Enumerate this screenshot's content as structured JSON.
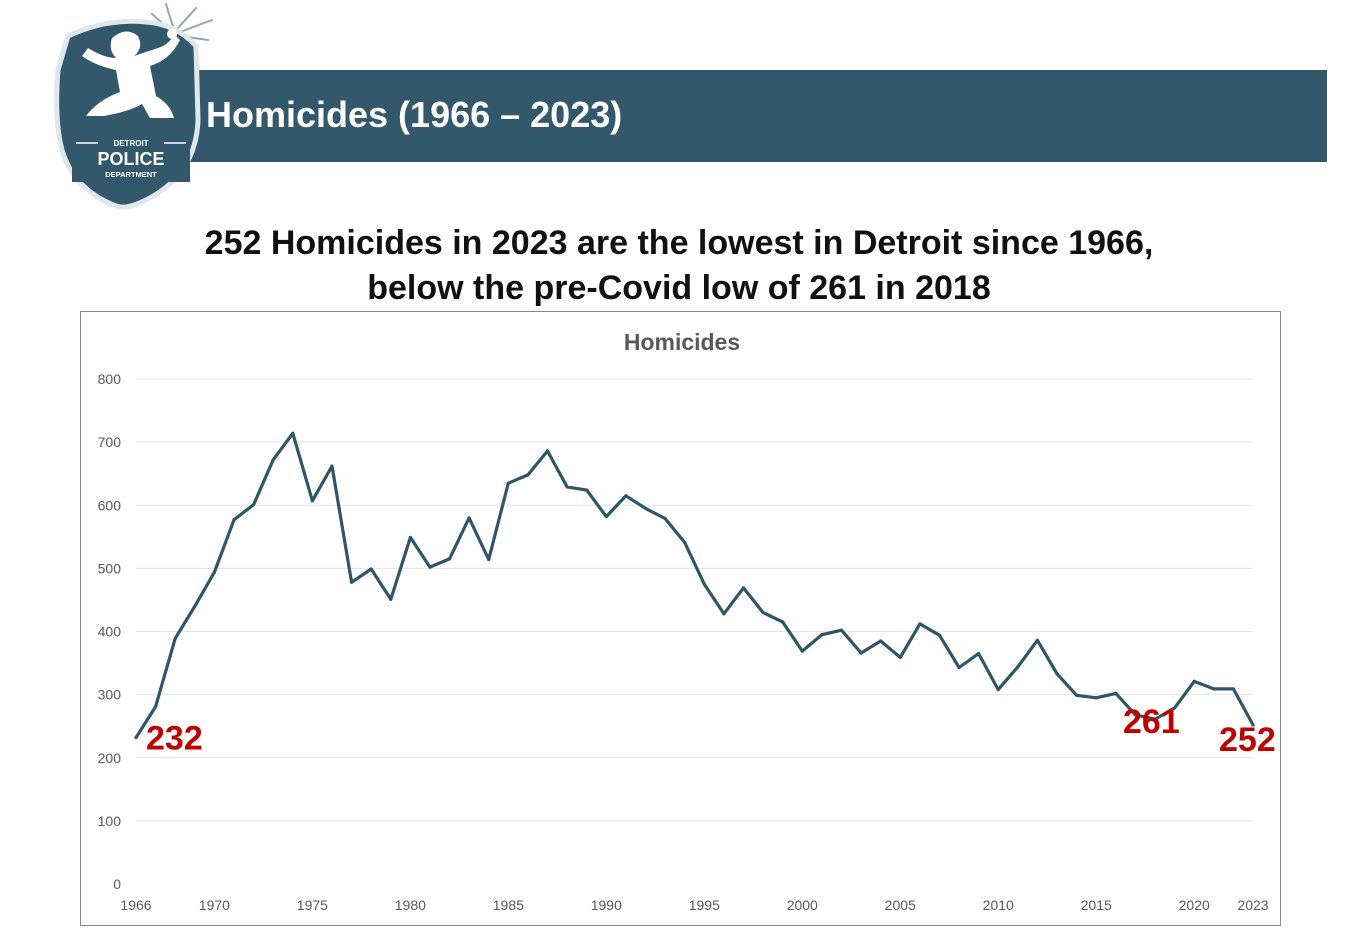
{
  "header": {
    "title": "Homicides (1966 – 2023)",
    "logo": {
      "line1": "DETROIT",
      "line2": "POLICE",
      "line3": "DEPARTMENT",
      "icon": "spirit-of-detroit-badge-icon"
    }
  },
  "headline": {
    "line1": "252 Homicides in 2023 are the lowest in Detroit since 1966,",
    "line2": "below the pre-Covid low of 261 in 2018"
  },
  "colors": {
    "banner": "#33586b",
    "line": "#2f5566",
    "annotation": "#c00000",
    "grid": "#e3e3e3"
  },
  "chart_data": {
    "type": "line",
    "title": "Homicides",
    "xlabel": "",
    "ylabel": "",
    "ylim": [
      0,
      800
    ],
    "yticks": [
      0,
      100,
      200,
      300,
      400,
      500,
      600,
      700,
      800
    ],
    "xticks": [
      1966,
      1970,
      1975,
      1980,
      1985,
      1990,
      1995,
      2000,
      2005,
      2010,
      2015,
      2020,
      2023
    ],
    "grid": true,
    "legend": "none",
    "series": [
      {
        "x": [
          1966,
          1967,
          1968,
          1969,
          1970,
          1971,
          1972,
          1973,
          1974,
          1975,
          1976,
          1977,
          1978,
          1979,
          1980,
          1981,
          1982,
          1983,
          1984,
          1985,
          1986,
          1987,
          1988,
          1989,
          1990,
          1991,
          1992,
          1993,
          1994,
          1995,
          1996,
          1997,
          1998,
          1999,
          2000,
          2001,
          2002,
          2003,
          2004,
          2005,
          2006,
          2007,
          2008,
          2009,
          2010,
          2011,
          2012,
          2013,
          2014,
          2015,
          2016,
          2017,
          2018,
          2019,
          2020,
          2021,
          2022,
          2023
        ],
        "values": [
          232,
          281,
          389,
          440,
          494,
          577,
          601,
          672,
          714,
          607,
          662,
          478,
          499,
          451,
          549,
          502,
          515,
          580,
          514,
          635,
          648,
          686,
          629,
          624,
          582,
          615,
          595,
          579,
          541,
          475,
          428,
          469,
          430,
          415,
          369,
          395,
          402,
          366,
          385,
          359,
          412,
          394,
          343,
          365,
          308,
          344,
          386,
          333,
          299,
          295,
          302,
          268,
          261,
          279,
          321,
          309,
          309,
          252
        ]
      }
    ],
    "annotations": [
      {
        "label": "232",
        "x": 1966,
        "y": 232
      },
      {
        "label": "261",
        "x": 2018,
        "y": 261
      },
      {
        "label": "252",
        "x": 2023,
        "y": 252
      }
    ]
  }
}
